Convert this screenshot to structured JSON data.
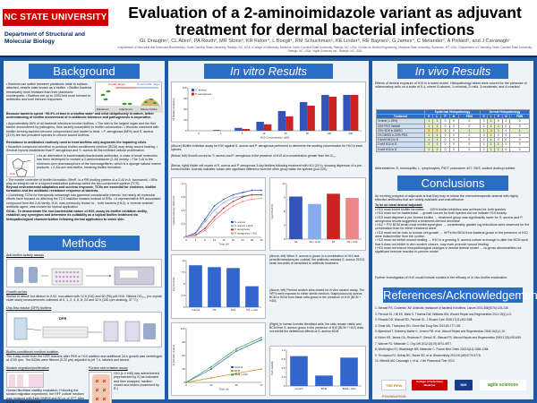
{
  "header": {
    "logo_text": "NC STATE UNIVERSITY",
    "department": "Department of Structural and Molecular Biology",
    "title": "Evaluation of a 2-aminoimidazole variant as adjuvant treatment for dermal bacterial infections",
    "authors": "GL Draughn¹, CL Allen¹, PA Routh², MR Stone³, KR Kirker⁴, L Boegli⁴, RM Schuchman⁵, KE Linder⁶, RE Baynes¹, G James⁴, C Melander⁷, A Pollard⁵, and J Cavanagh¹",
    "affiliations": "¹Department of Structural and Molecular Biochemistry, North Carolina State University, Raleigh, NC, USA; ²College of Veterinary Medicine, North Carolina State University, Raleigh, NC, USA; ³Center for Biofilm Engineering, Montana State University, Bozeman, MT, USA; ⁴Department of Chemistry, North Carolina State University, Raleigh, NC, USA; ⁵Agile Sciences Inc., Raleigh, NC, USA"
  },
  "sections": {
    "background": "Background",
    "methods": "Methods",
    "in_vitro": "In vitro Results",
    "in_vivo": "In vivo Results",
    "conclusions": "Conclusions",
    "references": "References/Acknowledgements"
  },
  "background": {
    "intro": "• Bacteria can switch between planktonic state to surface-attached, sessile state known as a biofilm. • Biofilm bacteria remarkably more resistant than their planktonic counterparts. • Biofilms are up to 1000-fold more tolerant to antibiotics and host immune responses.",
    "bold_line": "Because bacteria spend ~99.9% of time in a biofilm state¹ and exist ubiquitously in nature, better understanding of biofilm involvement of in antibiotic tolerance and pathogenesis is imperative.",
    "fig_labels": [
      "Planktonic",
      "Attachment",
      "Mature biofilm",
      "Current target",
      "Novel biofilm target"
    ],
    "bullets": "• Approximately 80% of all bacterial infections involve biofilms. • The skin is the largest organ and the first barrier encountered by pathogens, thus acutely susceptible to biofilm colonization. • Wounds colonized with biofilm-forming bacteria become compromised and harder to treat. • P. aeruginosa (68%) and S. aureus (31%) are two prevalent species in chronic wound biofilms.",
    "resistance": "Resistance to antibiotics routinely used to treat biofilms only augments the impairing crisis.",
    "bullets2": "• Bioactive compound secretion to produce biofilm-conditioned medium (BCM) may delay wound healing. • Several reports established that P. aeruginosa and S. aureus BCMs inhibited cellular proliferation.",
    "aminoimidazole": "• As an alternative to bacteriostatic/bactericidal antibiotics, a class of small molecules has been developed to contain a 2-aminoimidazole (2-AI) moiety. • The 2-AI is the minimum core pharmacophore of the bromoageliferin, which is a sponge natural marine products. • 2-AIs are anti-biofilm, breaking biofilm formation.",
    "master": "• The master controller of biofilm formation, BfmR, is a RR binding partner of a 2-AI in A. baumannii. • RRs play an integral role in a signal transduction pathway called the two-component system (TCS).",
    "beyond": "Beyond environmental adaptation and survival response, TCSs are essential for virulence, biofilm formation and the antibiotic resistance response of bacteria.",
    "combining": "• Combining TCSs for therapeutic advantage has garnered considerable interest, but nearly all molecular efforts have focused on affecting the TCS histidine kinases instead of RRs. • A representative RR-associated compound from the 2-AI family, H10, was previously shown to... both bacteria (H10), a 'reverse aminide' antibiotic agent, was chosen for topical application.",
    "goal": "GOAL: To demonstrate the non-bactericidal nature of H10, assay its biofilm inhibition ability, establish any synergism and determine its suitability as a topical biofilm treatment via histopathological characterization following dermal application to swine skin."
  },
  "methods": {
    "antibiofilm_label": "Anti-biofilm activity assays",
    "growth_curves": "Growth curves",
    "growth_text": "Similar to above but dilution to 0.02, inoculated with 12.6 (GA) and 50 (PA) µM H10. Diluted OD₆₀₀ (no crystal violet stain) measurements collected at 0, 1, 2, 4, 6, 8, 24 and 32 h (150 rpm shaking, 37 °C).",
    "dfr_label": "Drip-flow reactor (DFR) biofilms",
    "dfr_text": "The 3-day mode from the DFR reactors after PBS or H10 addition and additional 24-h growth was centrifuged at 4700 rpm. The BCMs were filtered (0.22 µm) adjusted to pH 7.4, labeled and stored.",
    "bcm_label": "Biofilm-conditioned medium isolation",
    "scratch_label": "Scratch migration/proliferation",
    "scratch_text": "Human fibroblast viability evaluation: Following the scratch migration experiment, the HFF culture medium was replaced with fresh DMEM and 60 µL of XTT. After 4 h, A₄₅₀ was measured.",
    "porcine_label": "Porcine skin irritation assay",
    "porcine_text": "H10 (≤ 4 mM) was administered (represented by X) as indicated and then wrapped, tracked, closed and tested (examined by R.)",
    "dfr_tag": "DFR"
  },
  "in_vitro": {
    "caption1": "(Above) Biofilm inhibition assay for H10 against S. aureus and P. aeruginosa performed to determine the working concentration for H10 in each species.",
    "caption2": "(Below, left) Growth curves for S. aureus and P. aeruginosa in the presence of H10 at a concentration greater than the IC₅₀.",
    "caption3": "(Below, right) Viable cell counts of S. aureus and P. aeruginosa 3-day biofilms following treatment with H10 (24 h), showing dispersion of a pre-formed biofilm. Asterisk indicates values with significant difference from the other group within the species (p≤0.025).",
    "caption4": "(Above, left) When S. aureus is grown in a combination of H10 and penicillin/streptomycin cocktail, the antibiotic-resistant S. aureus 29213 strain becomes re-sensitized to antibiotic treatment.",
    "caption5": "(Above, left) Percent scratch area closed for in vitro scratch assay. The HFFs were exposed to either sterile medium, Staphylococcus aureus BCM or BCM from these cells grown in the presence of H10 (BCM + H10).",
    "caption6": "(Right) In human foreskin fibroblast cells, the cells remain viable and BCM from S. aureus grown in the presence of H10 (BCM + H10) does not exhibit the deleterious effects of S. aureus BCM."
  },
  "in_vivo": {
    "intro": "Effects of dermal exposure of H10 in a swine model. Histopathology slides were scored for the presence of inflammatory cells on a scale of 0-4, where 0=absent, 1=minimal, 2=mild, 3=moderate, and 4=marked.",
    "table_headers": [
      "",
      "Epidermal Histopathology",
      "Dermal Histopathology"
    ],
    "table_subheaders": [
      "Treatment",
      "E",
      "L",
      "P",
      "N",
      "PMN",
      "E",
      "L",
      "P",
      "N",
      "PMN"
    ],
    "table_rows": [
      [
        "Vehicle (1.25%)",
        "1",
        "1",
        "0",
        "0",
        "0",
        "0",
        "1",
        "0",
        "0",
        "0"
      ],
      [
        "20% PEG Vehicle",
        "1",
        "1",
        "0",
        "0",
        "0",
        "0",
        "1",
        "1",
        "0",
        "0"
      ],
      [
        "20% SDS in DMSO",
        "2",
        "2",
        "1",
        "0",
        "1",
        "1",
        "2",
        "1",
        "0",
        "1"
      ],
      [
        "1% DMSO in 20% PEG",
        "1",
        "1",
        "0",
        "0",
        "0",
        "0",
        "1",
        "0",
        "0",
        "0"
      ],
      [
        "0.4mM H10 in D",
        "1",
        "1",
        "0",
        "0",
        "0",
        "0",
        "1",
        "0",
        "0",
        "0"
      ],
      [
        "2 mM H10 in D",
        "1",
        "1",
        "0",
        "0",
        "0",
        "0",
        "1",
        "1",
        "0",
        "0"
      ],
      [
        "4 mM H10 in D",
        "1",
        "1",
        "0",
        "0",
        "0",
        "0",
        "1",
        "1",
        "0",
        "0"
      ]
    ],
    "abbrev": "Abbreviations: E, eosinophils; L, lymphocytes; P407, poloxamer 407; SDS, sodium dodecyl sulfate."
  },
  "conclusions": {
    "intro": "An exciting prospect of adjuvants is that they may re-infuse the chemotherapeutic arsenal with highly effective antibiotics that are widely available and cost-effective.",
    "heading": "To be an ideal dermal adjuvant:",
    "items": [
      "• H10 must inhibit biofilm formation → 100% biofilm inhibition was achieved for both species",
      "• H10 must not be bactericidal → growth curves for both species did not indicate H10 toxicity",
      "• H10 must disperse a pre-formed biofilm → treatment group was significantly lower for S. aureus and P. aeruginosa results suggested a treatment-derived decrease",
      "• H10 + PS/ BCM strain must exhibit synergism → considerably greater log reductions were observed for the combination than for either treatment alone",
      "• H10 must not be toxic to human cell growth → HFFs fed BCM from bacteria grown in the presence of H10 were indiscernible from the control.",
      "• H10 must not inhibit wound healing → H10 in a growing S. aureus culture is enough to alter the BCM such that it does not inhibit in vitro scratch closure, may even promote wound healing",
      "• H10 must not induce histopathological changes in animal dermal model → no gross abnormalities nor significant immune reaction in porcine model"
    ],
    "further": "Further investigation of H10 would include studies in the efficacy of in vivo biofilm eradication."
  },
  "references": {
    "items": [
      "1. Stewart PS, Costerton JW. Antibiotic resistance of bacteria in biofilms. Lancet 2001;358(9276):135-138.",
      "2. Percival SL, Hill KE, Malic S, Thomas DW, Williams DW. Wound Repair and Regeneration 2011;19(1):1-9.",
      "3. Rhoads DD, Wolcott RD, Percival SL. J Wound Care 2008;17(11):502-508.",
      "4. Omar MA, Thompson DH. Chem Biol Drug Des 2012;80:177-183.",
      "5. Bjarnsholt T, Kirketerp-Møller K, Jensen PØ, et al. Wound Repair and Regeneration 2008;16(1):2-10.",
      "6. Kirker KR, James GA, Fleckman P, Olerud JE, Stewart PS. Wound Repair and Regeneration 2009;17(5):690-699.",
      "7. Wanner RJ, Melander C. Org Lett 2012;14(19):4974-4977.",
      "8. Worthington RJ, Blackledge MS, Melander C. Future Med Chem 2013;5(11):1265-1284.",
      "9. Thompson RJ, Bobay BG, Stowe SD, et al. Biochemistry 2012;51(49):9776-9778.",
      "10. Mitchell AM, Cavanagh J, et al. J Vet Pharmacol Ther 2013."
    ],
    "logos": [
      "NIH",
      "THE PEW FOUNDATION",
      "College of Veterinary Medicine",
      "agile sciences"
    ]
  },
  "chart_data": [
    {
      "type": "bar",
      "title": "",
      "xlabel": "H10 Concentration (µM)",
      "ylabel": "% Biofilm Inhibition",
      "categories": [
        "0",
        "1",
        "5",
        "10",
        "25",
        "50",
        "100",
        "200"
      ],
      "series": [
        {
          "name": "S. aureus",
          "values": [
            0,
            2,
            8,
            25,
            55,
            80,
            100,
            100
          ]
        },
        {
          "name": "P. aeruginosa",
          "values": [
            0,
            0,
            5,
            18,
            40,
            70,
            95,
            100
          ]
        }
      ],
      "ylim": [
        0,
        120
      ],
      "colors": [
        "#3355bb",
        "#cc2222"
      ]
    },
    {
      "type": "line",
      "title": "",
      "xlabel": "Time (h)",
      "ylabel": "Optical Density (600 nm)",
      "x": [
        0,
        4,
        8,
        12,
        16,
        20,
        24,
        28,
        32
      ],
      "series": [
        {
          "name": "S. aureus",
          "values": [
            0.02,
            0.1,
            0.4,
            0.7,
            0.85,
            0.95,
            1.0,
            1.05,
            1.05
          ]
        },
        {
          "name": "S. aureus + H10",
          "values": [
            0.02,
            0.08,
            0.35,
            0.6,
            0.78,
            0.88,
            0.92,
            0.95,
            0.95
          ]
        },
        {
          "name": "P. aeruginosa",
          "values": [
            0.02,
            0.05,
            0.2,
            0.45,
            0.65,
            0.8,
            0.9,
            0.95,
            0.95
          ]
        },
        {
          "name": "P. aeruginosa + H10",
          "values": [
            0.02,
            0.04,
            0.15,
            0.38,
            0.55,
            0.7,
            0.8,
            0.85,
            0.87
          ]
        }
      ],
      "ylim": [
        0,
        1.2
      ],
      "colors": [
        "#3355bb",
        "#88aaee",
        "#cc2222",
        "#ee8888"
      ]
    },
    {
      "type": "bar",
      "title": "",
      "xlabel": "",
      "ylabel": "log CFU/cm²",
      "categories": [
        "SA",
        "SA + H10",
        "PA",
        "PA + H10"
      ],
      "values": [
        9.2,
        7.6,
        9.8,
        8.9
      ],
      "ylim": [
        0,
        12
      ],
      "colors": [
        "#3355bb",
        "#88aaee",
        "#cc2222",
        "#ee8888"
      ]
    },
    {
      "type": "bar",
      "title": "",
      "xlabel": "",
      "ylabel": "log CFU/mL",
      "categories": [
        "Control",
        "PS",
        "H10",
        "PS + H10"
      ],
      "values": [
        9.0,
        8.6,
        8.4,
        4.5
      ],
      "ylim": [
        0,
        10
      ],
      "colors": [
        "#3366cc",
        "#3366cc",
        "#3366cc",
        "#3366cc"
      ]
    },
    {
      "type": "line",
      "title": "",
      "xlabel": "Time (h)",
      "ylabel": "% Scratch closed",
      "x": [
        0,
        24,
        48,
        72
      ],
      "series": [
        {
          "name": "Control",
          "values": [
            0,
            30,
            70,
            95
          ]
        },
        {
          "name": "BCM",
          "values": [
            0,
            10,
            20,
            30
          ]
        },
        {
          "name": "BCM + H10",
          "values": [
            0,
            35,
            75,
            100
          ]
        }
      ],
      "ylim": [
        0,
        120
      ],
      "colors": [
        "#3355bb",
        "#cc8822",
        "#22aa44"
      ]
    },
    {
      "type": "bar",
      "title": "",
      "xlabel": "",
      "ylabel": "Cell viability",
      "categories": [
        "Control",
        "BCM",
        "BCM + H10"
      ],
      "values": [
        1.0,
        0.35,
        0.95
      ],
      "ylim": [
        0,
        1.2
      ],
      "colors": [
        "#3366cc",
        "#3366cc",
        "#3366cc"
      ]
    }
  ]
}
